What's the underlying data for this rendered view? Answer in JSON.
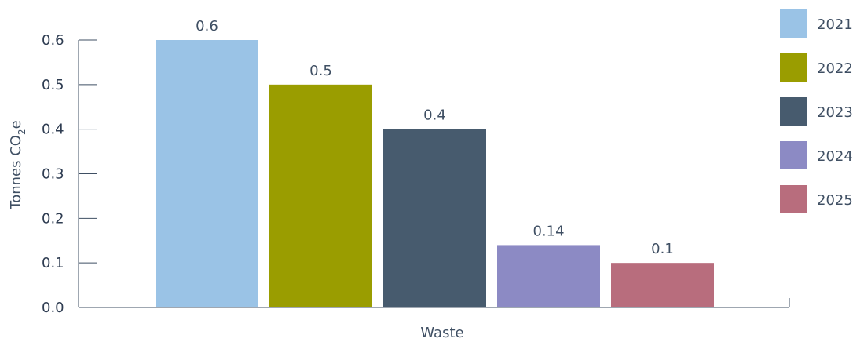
{
  "chart_data": {
    "type": "bar",
    "categories": [
      "Waste"
    ],
    "series": [
      {
        "name": "2021",
        "values": [
          0.6
        ],
        "color": "#9ac3e6",
        "label": "0.6"
      },
      {
        "name": "2022",
        "values": [
          0.5
        ],
        "color": "#9a9d00",
        "label": "0.5"
      },
      {
        "name": "2023",
        "values": [
          0.4
        ],
        "color": "#475b6e",
        "label": "0.4"
      },
      {
        "name": "2024",
        "values": [
          0.14
        ],
        "color": "#8c8ac4",
        "label": "0.14"
      },
      {
        "name": "2025",
        "values": [
          0.1
        ],
        "color": "#b86d7d",
        "label": "0.1"
      }
    ],
    "xlabel": "Waste",
    "ylabel": {
      "main": "Tonnes CO",
      "subscript": "2",
      "suffix": "e"
    },
    "ylim": [
      0,
      0.6
    ],
    "yticks": [
      "0.0",
      "0.1",
      "0.2",
      "0.3",
      "0.4",
      "0.5",
      "0.6"
    ],
    "legend_position": "right",
    "grid": false
  }
}
